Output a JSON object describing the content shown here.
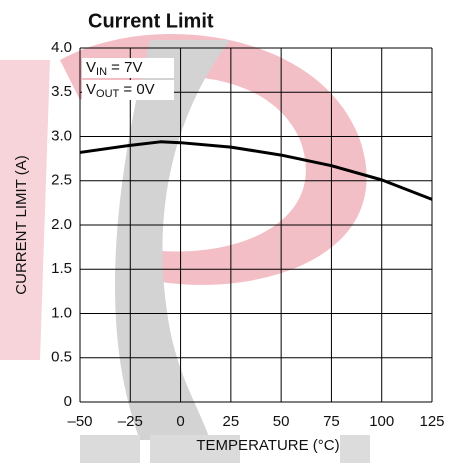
{
  "chart_data": {
    "type": "line",
    "title": "Current Limit",
    "x_label": "TEMPERATURE (°C)",
    "y_label": "CURRENT LIMIT (A)",
    "annotations": [
      {
        "main": "V",
        "sub": "IN",
        "rest": " = 7V"
      },
      {
        "main": "V",
        "sub": "OUT",
        "rest": " = 0V"
      }
    ],
    "x": [
      -50,
      -25,
      -10,
      0,
      25,
      50,
      75,
      100,
      125
    ],
    "values": [
      2.82,
      2.9,
      2.94,
      2.93,
      2.88,
      2.79,
      2.67,
      2.51,
      2.29
    ],
    "color": "#000000",
    "xlim": [
      -50,
      125
    ],
    "xticks": [
      {
        "value": -50,
        "label": "–50"
      },
      {
        "value": -25,
        "label": "–25"
      },
      0,
      25,
      50,
      75,
      100,
      125
    ],
    "ylim": [
      0,
      4
    ],
    "yticks": [
      0,
      0.5,
      {
        "value": 1,
        "label": "1.0"
      },
      1.5,
      {
        "value": 2,
        "label": "2.0"
      },
      2.5,
      {
        "value": 3,
        "label": "3.0"
      },
      3.5,
      {
        "value": 4,
        "label": "4.0"
      }
    ],
    "grid": true
  }
}
